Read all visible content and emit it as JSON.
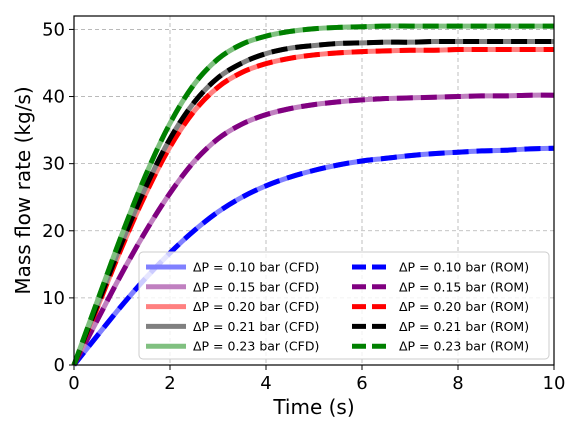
{
  "chart_data": {
    "type": "line",
    "xlabel": "Time (s)",
    "ylabel": "Mass flow rate (kg/s)",
    "xlim": [
      0,
      10
    ],
    "ylim": [
      0,
      52
    ],
    "xticks": [
      0,
      2,
      4,
      6,
      8,
      10
    ],
    "yticks": [
      0,
      10,
      20,
      30,
      40,
      50
    ],
    "xtick_labels": [
      "0",
      "2",
      "4",
      "6",
      "8",
      "10"
    ],
    "ytick_labels": [
      "0",
      "10",
      "20",
      "30",
      "40",
      "50"
    ],
    "grid": true,
    "legend_position": "lower-right",
    "x": [
      0,
      0.5,
      1,
      1.5,
      2,
      2.5,
      3,
      3.5,
      4,
      4.5,
      5,
      5.5,
      6,
      6.5,
      7,
      7.5,
      8,
      8.5,
      9,
      9.5,
      10
    ],
    "series": [
      {
        "name": "ΔP = 0.10 bar (CFD)",
        "color": "#8080ff",
        "style": "solid",
        "values": [
          0.0,
          4.5,
          8.9,
          13.0,
          16.7,
          20.0,
          22.8,
          25.0,
          26.7,
          28.0,
          29.0,
          29.8,
          30.4,
          30.8,
          31.2,
          31.5,
          31.7,
          31.9,
          32.0,
          32.2,
          32.3
        ]
      },
      {
        "name": "ΔP = 0.15 bar (CFD)",
        "color": "#c080c0",
        "style": "solid",
        "values": [
          0.0,
          6.9,
          13.7,
          20.0,
          25.6,
          30.3,
          33.7,
          35.9,
          37.3,
          38.2,
          38.8,
          39.2,
          39.5,
          39.7,
          39.8,
          39.9,
          40.0,
          40.1,
          40.1,
          40.2,
          40.2
        ]
      },
      {
        "name": "ΔP = 0.20 bar (CFD)",
        "color": "#ff8080",
        "style": "solid",
        "values": [
          0.0,
          8.8,
          17.6,
          25.6,
          32.5,
          37.8,
          41.4,
          43.6,
          44.9,
          45.7,
          46.2,
          46.5,
          46.7,
          46.8,
          46.9,
          46.9,
          47.0,
          47.0,
          47.0,
          47.0,
          47.0
        ]
      },
      {
        "name": "ΔP = 0.21 bar (CFD)",
        "color": "#808080",
        "style": "solid",
        "values": [
          0.0,
          9.2,
          18.3,
          26.6,
          33.7,
          39.1,
          42.8,
          45.0,
          46.4,
          47.2,
          47.6,
          47.9,
          48.0,
          48.1,
          48.1,
          48.2,
          48.2,
          48.2,
          48.2,
          48.2,
          48.2
        ]
      },
      {
        "name": "ΔP = 0.23 bar (CFD)",
        "color": "#80c080",
        "style": "solid",
        "values": [
          0.0,
          9.8,
          19.5,
          28.4,
          36.0,
          41.8,
          45.6,
          47.8,
          49.0,
          49.7,
          50.1,
          50.3,
          50.4,
          50.5,
          50.5,
          50.5,
          50.5,
          50.5,
          50.5,
          50.5,
          50.5
        ]
      },
      {
        "name": "ΔP = 0.10 bar (ROM)",
        "color": "#0000ff",
        "style": "dashed",
        "values": [
          0.0,
          4.5,
          8.9,
          13.0,
          16.7,
          20.0,
          22.8,
          25.0,
          26.7,
          28.0,
          29.0,
          29.8,
          30.4,
          30.8,
          31.2,
          31.5,
          31.7,
          31.9,
          32.0,
          32.2,
          32.3
        ]
      },
      {
        "name": "ΔP = 0.15 bar (ROM)",
        "color": "#800080",
        "style": "dashed",
        "values": [
          0.0,
          6.9,
          13.7,
          20.0,
          25.6,
          30.3,
          33.7,
          35.9,
          37.3,
          38.2,
          38.8,
          39.2,
          39.5,
          39.7,
          39.8,
          39.9,
          40.0,
          40.1,
          40.1,
          40.2,
          40.2
        ]
      },
      {
        "name": "ΔP = 0.20 bar (ROM)",
        "color": "#ff0000",
        "style": "dashed",
        "values": [
          0.0,
          8.8,
          17.6,
          25.6,
          32.5,
          37.8,
          41.4,
          43.6,
          44.9,
          45.7,
          46.2,
          46.5,
          46.7,
          46.8,
          46.9,
          46.9,
          47.0,
          47.0,
          47.0,
          47.0,
          47.0
        ]
      },
      {
        "name": "ΔP = 0.21 bar (ROM)",
        "color": "#000000",
        "style": "dashed",
        "values": [
          0.0,
          9.2,
          18.3,
          26.6,
          33.7,
          39.1,
          42.8,
          45.0,
          46.4,
          47.2,
          47.6,
          47.9,
          48.0,
          48.1,
          48.1,
          48.2,
          48.2,
          48.2,
          48.2,
          48.2,
          48.2
        ]
      },
      {
        "name": "ΔP = 0.23 bar (ROM)",
        "color": "#008000",
        "style": "dashed",
        "values": [
          0.0,
          9.8,
          19.5,
          28.4,
          36.0,
          41.8,
          45.6,
          47.8,
          49.0,
          49.7,
          50.1,
          50.3,
          50.4,
          50.5,
          50.5,
          50.5,
          50.5,
          50.5,
          50.5,
          50.5,
          50.5
        ]
      }
    ]
  }
}
